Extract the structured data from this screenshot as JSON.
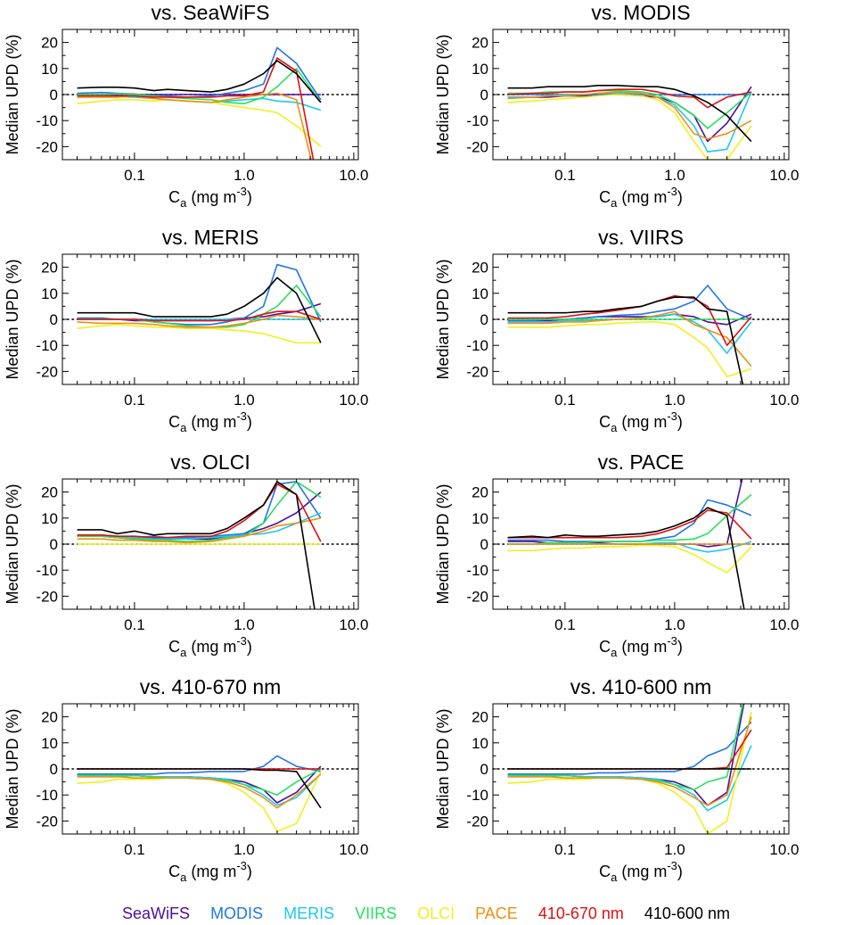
{
  "chart_data": {
    "type": "line",
    "xscale": "log",
    "xlim": [
      0.022,
      11
    ],
    "ylim": [
      -25,
      25
    ],
    "x_ticks": [
      0.1,
      1.0,
      10.0
    ],
    "x_tick_labels": [
      "0.1",
      "1.0",
      "10.0"
    ],
    "y_ticks": [
      -20,
      -10,
      0,
      10,
      20
    ],
    "y_tick_labels": [
      "-20",
      "-10",
      "0",
      "10",
      "20"
    ],
    "xlabel_main": "C",
    "xlabel_sub": "a",
    "xlabel_rest": " (mg m",
    "xlabel_sup": "-3",
    "xlabel_end": ")",
    "ylabel": "Median UPD (%)",
    "x": [
      0.03,
      0.05,
      0.07,
      0.1,
      0.15,
      0.2,
      0.3,
      0.5,
      0.7,
      1.0,
      1.5,
      2.0,
      3.0,
      5.0
    ],
    "series_names": [
      "SeaWiFS",
      "MODIS",
      "MERIS",
      "VIIRS",
      "OLCI",
      "PACE",
      "410-670 nm",
      "410-600 nm"
    ],
    "series_colors": [
      "#4b0fa0",
      "#1f78e6",
      "#1ec8f0",
      "#28e060",
      "#f0f020",
      "#f09010",
      "#e01010",
      "#000000"
    ],
    "panels": [
      {
        "title": "vs. SeaWiFS",
        "series": [
          [
            0,
            0,
            0,
            0,
            0,
            0,
            0,
            0,
            0,
            0,
            0,
            0,
            0,
            0
          ],
          [
            0.5,
            0.8,
            0.5,
            0.2,
            -0.5,
            -0.5,
            -1,
            -0.5,
            0.5,
            1.5,
            4,
            18,
            12,
            -2
          ],
          [
            -1,
            -0.5,
            -0.8,
            -1,
            -1.5,
            -2,
            -2.5,
            -3,
            -2.5,
            -2,
            -1.5,
            -2.5,
            -3,
            -6
          ],
          [
            0,
            0,
            0.3,
            0,
            -0.5,
            -1,
            -1.5,
            -2,
            -3,
            -3.5,
            -1,
            3,
            10,
            -3
          ],
          [
            -3.5,
            -2.5,
            -2,
            -2,
            -2.5,
            -2,
            -2.5,
            -3,
            -4,
            -5,
            -6,
            -7,
            -12,
            -20
          ],
          [
            -1,
            -1,
            -1,
            -0.5,
            -1.5,
            -2,
            -2.5,
            -3,
            -2,
            -1,
            0,
            0.5,
            -2,
            -40
          ],
          [
            -0.5,
            -0.5,
            -0.5,
            -0.5,
            -1,
            -1,
            -1,
            -1,
            -0.5,
            -0.5,
            1,
            14,
            9,
            -40
          ],
          [
            2.5,
            2.8,
            2.8,
            2.5,
            1.5,
            2,
            1.5,
            1,
            2,
            4,
            8,
            13,
            8,
            -3
          ]
        ]
      },
      {
        "title": "vs. MODIS",
        "series": [
          [
            -1,
            -1,
            -1,
            -0.5,
            -0.5,
            0,
            0,
            -0.5,
            -1,
            -3,
            -8,
            -18,
            -11,
            3
          ],
          [
            0,
            0,
            0,
            0,
            0,
            0,
            0,
            0,
            0,
            0,
            0,
            0,
            0,
            0
          ],
          [
            -1,
            -1,
            -0.5,
            0,
            0,
            0.5,
            0.5,
            0.5,
            -1,
            -4,
            -12,
            -22,
            -21,
            1
          ],
          [
            0.5,
            0.5,
            1,
            1,
            1,
            1.5,
            1.5,
            1,
            0,
            -3,
            -8,
            -13,
            -7,
            1
          ],
          [
            -3,
            -2.5,
            -2,
            -1.5,
            -1,
            -0.5,
            0,
            -0.5,
            -2,
            -7,
            -18,
            -25,
            -25,
            -12
          ],
          [
            -1.5,
            -1,
            -0.5,
            -0.5,
            0,
            0.5,
            1,
            0.5,
            -1,
            -5,
            -15,
            -17,
            -15,
            -10
          ],
          [
            0,
            0.5,
            0.5,
            1,
            1,
            1.5,
            2,
            2,
            1,
            -0.5,
            -1,
            -5,
            -1,
            1
          ],
          [
            2.5,
            2.5,
            3,
            3,
            3,
            3.5,
            3.5,
            3,
            3,
            2,
            -0.5,
            -3,
            -8,
            -18
          ]
        ]
      },
      {
        "title": "vs. MERIS",
        "series": [
          [
            0,
            0,
            0,
            -0.5,
            -0.5,
            -0.5,
            -0.5,
            -0.5,
            0,
            0.5,
            1,
            2,
            3,
            6
          ],
          [
            0.5,
            0.5,
            0,
            0,
            -1,
            -1.5,
            -2,
            -2,
            -1,
            0.5,
            5,
            21,
            19,
            -1
          ],
          [
            0,
            0,
            0,
            0,
            0,
            0,
            0,
            0,
            0,
            0,
            0,
            0,
            0,
            0
          ],
          [
            0,
            0,
            0,
            0,
            -1,
            -1.5,
            -2.5,
            -3,
            -3,
            -2,
            2,
            5,
            13,
            1
          ],
          [
            -3.5,
            -2.5,
            -2,
            -2.5,
            -3,
            -3,
            -3.5,
            -3.5,
            -4,
            -4.5,
            -5.5,
            -7,
            -9,
            -9
          ],
          [
            -1,
            -1.5,
            -1.5,
            -1.5,
            -2,
            -2.5,
            -3,
            -3,
            -2.5,
            -1.5,
            0,
            1.5,
            1,
            0
          ],
          [
            0,
            0,
            0,
            0,
            -0.5,
            -0.5,
            -0.5,
            -0.5,
            -0.5,
            0,
            2,
            3,
            3,
            0
          ],
          [
            2.5,
            2.5,
            2.5,
            2.5,
            1,
            1,
            1,
            1,
            2,
            5,
            10,
            16,
            10,
            -9
          ]
        ]
      },
      {
        "title": "vs. VIIRS",
        "series": [
          [
            -0.5,
            -0.5,
            -0.5,
            0,
            0.5,
            1,
            1,
            1,
            1,
            2,
            1,
            -1,
            -2,
            2
          ],
          [
            -0.5,
            -0.5,
            0,
            0,
            0.5,
            1,
            1.5,
            2,
            3,
            4,
            7,
            13,
            4,
            0
          ],
          [
            -1,
            -1,
            -1,
            -0.5,
            -0.5,
            -0.5,
            0,
            0.5,
            1,
            2,
            -1,
            -4,
            -13,
            -1
          ],
          [
            0,
            0,
            0,
            0,
            0,
            0,
            0,
            0,
            0,
            0,
            0,
            0,
            0,
            0
          ],
          [
            -3,
            -3,
            -3,
            -2.5,
            -2,
            -2,
            -1.5,
            -1,
            -1,
            -2,
            -7,
            -11,
            -22,
            -19
          ],
          [
            -1.5,
            -1.5,
            -1.5,
            -1,
            -1,
            -0.5,
            0,
            0.5,
            1.5,
            3,
            -2,
            -4,
            -7,
            -18
          ],
          [
            0.5,
            0.5,
            0.5,
            1,
            2,
            2.5,
            3.5,
            5,
            7,
            9,
            8,
            5,
            -10,
            1
          ],
          [
            2.5,
            2.5,
            2.5,
            2.5,
            3,
            3,
            4,
            5,
            7,
            8.5,
            8.5,
            4,
            3,
            -40
          ]
        ]
      },
      {
        "title": "vs. OLCI",
        "series": [
          [
            3,
            3,
            2.5,
            2,
            2,
            2,
            2,
            2,
            3,
            4,
            6,
            8,
            12,
            20
          ],
          [
            3,
            3.5,
            3,
            2.5,
            3,
            2.5,
            2.5,
            3,
            3.5,
            4,
            8,
            23,
            24,
            10
          ],
          [
            3.5,
            3,
            3,
            2.5,
            2,
            2,
            2,
            2.5,
            3,
            3.5,
            4,
            5,
            8,
            12
          ],
          [
            3,
            3,
            2.5,
            2,
            1.5,
            1.5,
            1,
            1.5,
            2.5,
            3,
            8,
            15,
            24,
            18
          ],
          [
            0,
            0,
            0,
            0,
            0,
            0,
            0,
            0,
            0,
            0,
            0,
            0,
            0,
            0
          ],
          [
            2,
            2,
            1.5,
            1.5,
            1,
            1,
            0.5,
            1,
            2,
            3,
            5,
            7,
            8,
            10
          ],
          [
            3.5,
            3.5,
            3,
            3,
            2.5,
            2.5,
            3,
            3,
            5,
            9,
            15,
            23,
            19,
            1
          ],
          [
            5.5,
            5.5,
            4,
            5,
            3.5,
            4,
            4,
            4,
            6,
            10,
            15,
            24,
            19,
            -40
          ]
        ]
      },
      {
        "title": "vs. PACE",
        "series": [
          [
            1,
            1,
            0.5,
            0.5,
            0.5,
            0.5,
            0,
            0,
            0,
            0,
            0,
            -1,
            0,
            40
          ],
          [
            1.5,
            1.5,
            1.5,
            1,
            1,
            1,
            1,
            1,
            2,
            3,
            8,
            17,
            15,
            11
          ],
          [
            0,
            0,
            0,
            0,
            0,
            0,
            0,
            0,
            0.5,
            0.5,
            -2,
            -3,
            -2,
            1
          ],
          [
            0,
            0,
            0.5,
            0.5,
            0.5,
            1,
            1,
            1,
            1.5,
            1.5,
            2,
            4,
            11,
            19
          ],
          [
            -2.5,
            -2.5,
            -2,
            -1.5,
            -1.5,
            -1,
            -1,
            -0.5,
            -0.5,
            -1,
            -4,
            -7,
            -11,
            -1
          ],
          [
            0,
            0,
            0,
            0,
            0,
            0,
            0,
            0,
            0,
            0,
            0,
            0,
            0,
            0
          ],
          [
            2.5,
            2.5,
            2.5,
            2.5,
            2.5,
            2.5,
            2.5,
            3,
            4,
            6,
            9,
            13,
            12,
            2
          ],
          [
            2.5,
            3,
            2.5,
            3.5,
            3,
            3,
            3.5,
            4,
            5,
            7,
            10,
            14,
            11,
            -40
          ]
        ]
      },
      {
        "title": "vs. 410-670 nm",
        "series": [
          [
            -2.5,
            -2.5,
            -2.5,
            -2.5,
            -3,
            -3,
            -3,
            -3.5,
            -4,
            -5,
            -8,
            -13,
            -9,
            1
          ],
          [
            -2,
            -2,
            -2,
            -2,
            -2,
            -1.5,
            -1.5,
            -1,
            -1,
            -1,
            1,
            5,
            1,
            -1
          ],
          [
            -3,
            -3,
            -3,
            -2.5,
            -3,
            -3,
            -3,
            -3.5,
            -4,
            -6,
            -10,
            -14,
            -11,
            -2
          ],
          [
            -2.5,
            -2.5,
            -2.5,
            -2.5,
            -3,
            -3.5,
            -3.5,
            -4,
            -4.5,
            -6,
            -8,
            -10,
            -5,
            0
          ],
          [
            -5.5,
            -5,
            -4,
            -4,
            -4,
            -3.5,
            -3.5,
            -4,
            -5.5,
            -9,
            -15,
            -24,
            -21,
            -1
          ],
          [
            -3,
            -3,
            -3,
            -3.5,
            -3.5,
            -3.5,
            -3.5,
            -4,
            -5,
            -7,
            -11,
            -15,
            -10,
            -2
          ],
          [
            0,
            0,
            0,
            0,
            0,
            0,
            0,
            0,
            0,
            0,
            0,
            0,
            0,
            0
          ],
          [
            0,
            0,
            0,
            0,
            0,
            0,
            0,
            0,
            0,
            0,
            -0.5,
            -0.5,
            -1,
            -15
          ]
        ]
      },
      {
        "title": "vs. 410-600 nm",
        "series": [
          [
            -2.5,
            -2.5,
            -2.5,
            -2.5,
            -3,
            -3,
            -3,
            -3.5,
            -4,
            -5,
            -8,
            -14,
            -9,
            40
          ],
          [
            -2,
            -2,
            -2,
            -2,
            -2,
            -1.5,
            -1.5,
            -1,
            -1,
            -1,
            1,
            5,
            8,
            18
          ],
          [
            -3,
            -3,
            -3,
            -2.5,
            -3,
            -3,
            -3,
            -3.5,
            -4,
            -6,
            -10,
            -16,
            -12,
            9
          ],
          [
            -2.5,
            -2.5,
            -2.5,
            -2.5,
            -3,
            -3.5,
            -3.5,
            -4,
            -4.5,
            -6,
            -8,
            -5,
            -3,
            40
          ],
          [
            -5.5,
            -5,
            -4,
            -4,
            -4,
            -3.5,
            -3.5,
            -4,
            -5.5,
            -9,
            -15,
            -25,
            -20,
            22
          ],
          [
            -3,
            -3,
            -3,
            -3.5,
            -3.5,
            -3.5,
            -3.5,
            -4,
            -5,
            -7,
            -11,
            -14,
            -10,
            20
          ],
          [
            0,
            0,
            0,
            0,
            0,
            0,
            0,
            0,
            0,
            0,
            0,
            0,
            0.5,
            15
          ],
          [
            0,
            0,
            0,
            0,
            0,
            0,
            0,
            0,
            0,
            0,
            0,
            0,
            0,
            0
          ]
        ]
      }
    ]
  }
}
